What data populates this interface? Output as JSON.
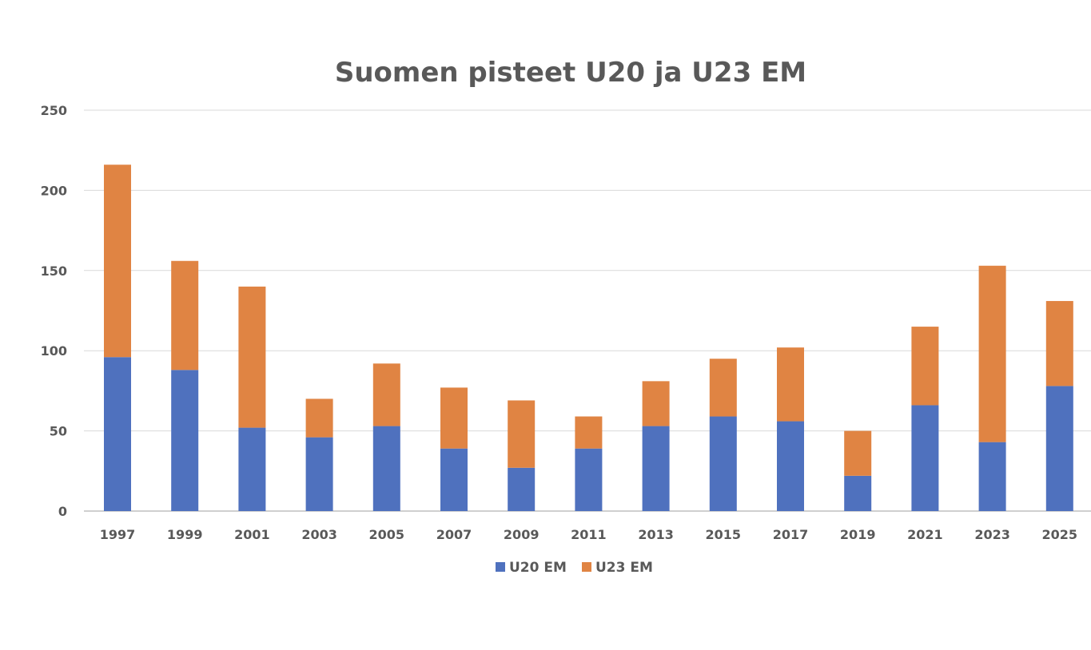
{
  "chart_data": {
    "type": "bar",
    "stacked": true,
    "title": "Suomen pisteet U20 ja U23 EM",
    "xlabel": "",
    "ylabel": "",
    "ylim": [
      0,
      250
    ],
    "yticks": [
      0,
      50,
      100,
      150,
      200,
      250
    ],
    "grid": true,
    "legend": "bottom-center",
    "categories": [
      "1997",
      "1999",
      "2001",
      "2003",
      "2005",
      "2007",
      "2009",
      "2011",
      "2013",
      "2015",
      "2017",
      "2019",
      "2021",
      "2023",
      "2025"
    ],
    "series": [
      {
        "name": "U20 EM",
        "color": "#4f71be",
        "values": [
          96,
          88,
          52,
          46,
          53,
          39,
          27,
          39,
          53,
          59,
          56,
          22,
          66,
          43,
          78
        ]
      },
      {
        "name": "U23 EM",
        "color": "#e08443",
        "values": [
          120,
          68,
          88,
          24,
          39,
          38,
          42,
          20,
          28,
          36,
          46,
          28,
          49,
          110,
          53
        ]
      }
    ]
  }
}
